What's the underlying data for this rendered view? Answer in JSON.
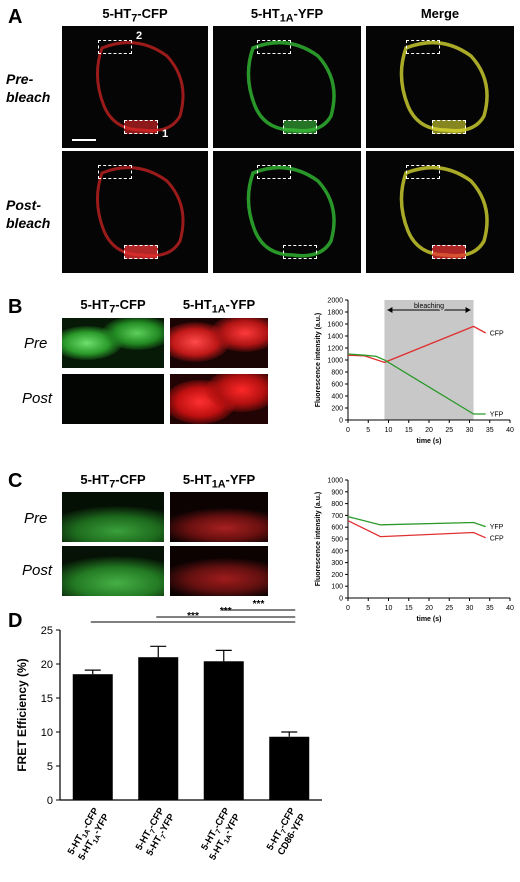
{
  "panelA": {
    "letter": "A",
    "columns": [
      {
        "base": "5-HT",
        "sub": "7",
        "suffix": "-CFP"
      },
      {
        "base": "5-HT",
        "sub": "1A",
        "suffix": "-YFP"
      },
      {
        "base": "Merge",
        "sub": "",
        "suffix": ""
      }
    ],
    "rows": [
      {
        "line1": "Pre-",
        "line2": "bleach"
      },
      {
        "line1": "Post-",
        "line2": "bleach"
      }
    ],
    "roi_labels": [
      "2",
      "1"
    ]
  },
  "panelB": {
    "letter": "B",
    "columns": [
      {
        "base": "5-HT",
        "sub": "7",
        "suffix": "-CFP"
      },
      {
        "base": "5-HT",
        "sub": "1A",
        "suffix": "-YFP"
      }
    ],
    "rows": [
      "Pre",
      "Post"
    ]
  },
  "panelC": {
    "letter": "C",
    "columns": [
      {
        "base": "5-HT",
        "sub": "7",
        "suffix": "-CFP"
      },
      {
        "base": "5-HT",
        "sub": "1A",
        "suffix": "-YFP"
      }
    ],
    "rows": [
      "Pre",
      "Post"
    ]
  },
  "panelD": {
    "letter": "D",
    "significance": [
      "***",
      "***",
      "***"
    ]
  },
  "colors": {
    "red": "#e03030",
    "green": "#2a9a2a",
    "yellow": "#d8d830",
    "bar": "#000000",
    "shade": "#c8c8c8"
  },
  "chart_data": [
    {
      "type": "line",
      "panel": "B",
      "xlabel": "time (s)",
      "ylabel": "Fluorescence intensity (a.u.)",
      "xlim": [
        0,
        40
      ],
      "ylim": [
        0,
        2000
      ],
      "xticks": [
        0,
        5,
        10,
        15,
        20,
        25,
        30,
        35,
        40
      ],
      "yticks": [
        0,
        200,
        400,
        600,
        800,
        1000,
        1200,
        1400,
        1600,
        1800,
        2000
      ],
      "bleach_window": [
        9,
        31
      ],
      "annotation": "bleaching",
      "series": [
        {
          "name": "CFP",
          "color": "#e03030",
          "x": [
            0,
            4,
            9,
            31,
            34
          ],
          "y": [
            1080,
            1070,
            960,
            1560,
            1450
          ]
        },
        {
          "name": "YFP",
          "color": "#2a9a2a",
          "x": [
            0,
            4,
            7,
            9,
            31,
            34
          ],
          "y": [
            1100,
            1080,
            1060,
            1000,
            100,
            100
          ]
        }
      ]
    },
    {
      "type": "line",
      "panel": "C",
      "xlabel": "time (s)",
      "ylabel": "Fluorescence intensity (a.u.)",
      "xlim": [
        0,
        40
      ],
      "ylim": [
        0,
        1000
      ],
      "xticks": [
        0,
        5,
        10,
        15,
        20,
        25,
        30,
        35,
        40
      ],
      "yticks": [
        0,
        100,
        200,
        300,
        400,
        500,
        600,
        700,
        800,
        900,
        1000
      ],
      "series": [
        {
          "name": "YFP",
          "color": "#2a9a2a",
          "x": [
            0,
            8,
            31,
            34
          ],
          "y": [
            690,
            620,
            640,
            605
          ]
        },
        {
          "name": "CFP",
          "color": "#e03030",
          "x": [
            0,
            8,
            31,
            34
          ],
          "y": [
            655,
            520,
            555,
            510
          ]
        }
      ]
    },
    {
      "type": "bar",
      "panel": "D",
      "ylabel": "FRET Efficiency (%)",
      "ylim": [
        0,
        25
      ],
      "yticks": [
        0,
        5,
        10,
        15,
        20,
        25
      ],
      "categories": [
        [
          {
            "base": "5-HT",
            "sub": "1A",
            "suffix": "-CFP"
          },
          {
            "base": "5-HT",
            "sub": "1A",
            "suffix": "-YFP"
          }
        ],
        [
          {
            "base": "5-HT",
            "sub": "7",
            "suffix": "-CFP"
          },
          {
            "base": "5-HT",
            "sub": "7",
            "suffix": "-YFP"
          }
        ],
        [
          {
            "base": "5-HT",
            "sub": "7",
            "suffix": "-CFP"
          },
          {
            "base": "5-HT",
            "sub": "1A",
            "suffix": "-YFP"
          }
        ],
        [
          {
            "base": "5-HT",
            "sub": "7",
            "suffix": "-CFP"
          },
          {
            "base": "CD86-YFP",
            "sub": "",
            "suffix": ""
          }
        ]
      ],
      "values": [
        18.5,
        21.0,
        20.4,
        9.3
      ],
      "errors": [
        0.6,
        1.6,
        1.6,
        0.7
      ]
    }
  ]
}
